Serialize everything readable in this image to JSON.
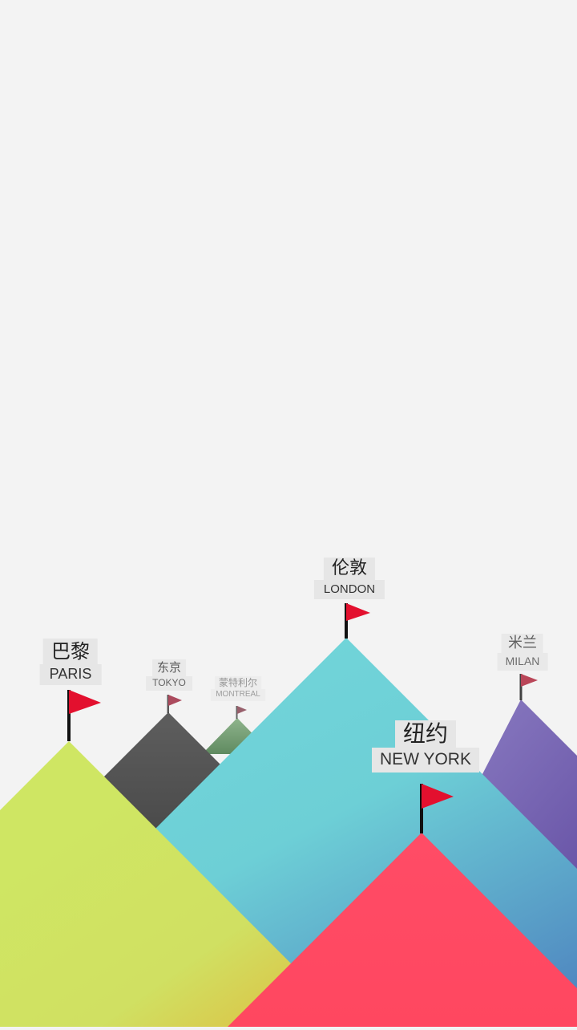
{
  "colors": {
    "background": "#f3f3f3",
    "label_background": "#e6e6e6",
    "flag_red": "#e3102e",
    "paris": "#cfe663",
    "tokyo": "#555555",
    "montreal": "#7ea37c",
    "london": "#70d4d8",
    "milan": "#8a7bc0",
    "newyork": "#ff4a64"
  },
  "cities": {
    "paris": {
      "cn": "巴黎",
      "en": "PARIS"
    },
    "tokyo": {
      "cn": "东京",
      "en": "TOKYO"
    },
    "montreal": {
      "cn": "蒙特利尔",
      "en": "MONTREAL"
    },
    "london": {
      "cn": "伦敦",
      "en": "LONDON"
    },
    "milan": {
      "cn": "米兰",
      "en": "MILAN"
    },
    "newyork": {
      "cn": "纽约",
      "en": "NEW YORK"
    }
  },
  "icons": [
    "flag-icon"
  ]
}
